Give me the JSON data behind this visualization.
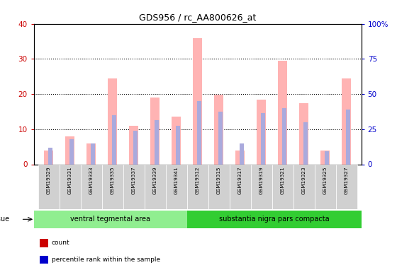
{
  "title": "GDS956 / rc_AA800626_at",
  "samples": [
    "GSM19329",
    "GSM19331",
    "GSM19333",
    "GSM19335",
    "GSM19337",
    "GSM19339",
    "GSM19341",
    "GSM19312",
    "GSM19315",
    "GSM19317",
    "GSM19319",
    "GSM19321",
    "GSM19323",
    "GSM19325",
    "GSM19327"
  ],
  "group1_name": "ventral tegmental area",
  "group2_name": "substantia nigra pars compacta",
  "group1_color": "#90ee90",
  "group2_color": "#32cd32",
  "group1_count": 7,
  "group2_count": 8,
  "value_absent": [
    4.0,
    8.0,
    6.0,
    24.5,
    11.0,
    19.0,
    13.5,
    36.0,
    19.8,
    4.0,
    18.5,
    29.5,
    17.5,
    4.0,
    24.5
  ],
  "rank_absent": [
    4.8,
    7.2,
    6.0,
    14.0,
    9.5,
    12.5,
    11.0,
    18.0,
    15.0,
    6.0,
    14.5,
    16.0,
    12.0,
    3.8,
    15.5
  ],
  "ylim_left": [
    0,
    40
  ],
  "ylim_right": [
    0,
    100
  ],
  "yticks_left": [
    0,
    10,
    20,
    30,
    40
  ],
  "yticklabels_right": [
    "0",
    "25",
    "50",
    "75",
    "100%"
  ],
  "color_value_absent": "#ffb3b3",
  "color_rank_absent": "#aaaadd",
  "color_count": "#cc0000",
  "color_rank_present": "#0000cc",
  "grid_color": "black",
  "tick_color_left": "#cc0000",
  "tick_color_right": "#0000cc",
  "sample_label_bg": "#d0d0d0",
  "plot_bg": "white",
  "pink_bar_width": 0.45,
  "blue_bar_width": 0.18
}
